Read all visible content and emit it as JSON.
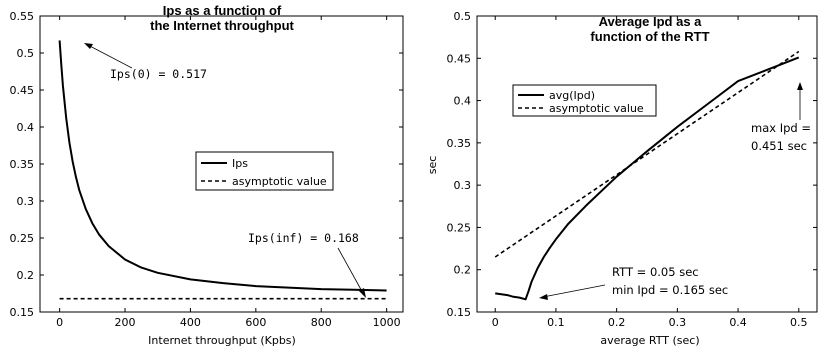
{
  "chart_data": [
    {
      "type": "line",
      "title": [
        "Ips as a function of",
        "the Internet throughput"
      ],
      "xlabel": "Internet throughput (Kpbs)",
      "ylabel": "",
      "xlim": [
        -60,
        1050
      ],
      "ylim": [
        0.15,
        0.55
      ],
      "xticks": [
        0,
        200,
        400,
        600,
        800,
        1000
      ],
      "xtick_labels": [
        "0",
        "200",
        "400",
        "600",
        "800",
        "1000"
      ],
      "yticks": [
        0.15,
        0.2,
        0.25,
        0.3,
        0.35,
        0.4,
        0.45,
        0.5,
        0.55
      ],
      "ytick_labels": [
        "0.15",
        "0.2",
        "0.25",
        "0.3",
        "0.35",
        "0.4",
        "0.45",
        "0.5",
        "0.55"
      ],
      "grid": false,
      "legend_position": "center-right",
      "series": [
        {
          "name": "Ips",
          "style": "solid",
          "x": [
            0,
            5,
            10,
            20,
            30,
            40,
            50,
            60,
            80,
            100,
            120,
            150,
            200,
            250,
            300,
            400,
            500,
            600,
            700,
            800,
            900,
            1000
          ],
          "y": [
            0.517,
            0.484,
            0.456,
            0.412,
            0.379,
            0.353,
            0.332,
            0.315,
            0.289,
            0.27,
            0.255,
            0.239,
            0.221,
            0.21,
            0.203,
            0.194,
            0.189,
            0.185,
            0.183,
            0.181,
            0.18,
            0.179
          ]
        },
        {
          "name": "asymptotic value",
          "style": "dashed",
          "x": [
            0,
            1000
          ],
          "y": [
            0.168,
            0.168
          ]
        }
      ],
      "annotations": [
        {
          "text": "Ips(0) = 0.517",
          "x": 0,
          "y": 0.517
        },
        {
          "text": "Ips(inf) = 0.168",
          "x": 1000,
          "y": 0.168
        }
      ]
    },
    {
      "type": "line",
      "title": [
        "Average Ipd as a",
        "function of the RTT"
      ],
      "xlabel": "average RTT (sec)",
      "ylabel": "sec",
      "xlim": [
        -0.03,
        0.53
      ],
      "ylim": [
        0.15,
        0.5
      ],
      "xticks": [
        0,
        0.1,
        0.2,
        0.3,
        0.4,
        0.5
      ],
      "xtick_labels": [
        "0",
        "0.1",
        "0.2",
        "0.3",
        "0.4",
        "0.5"
      ],
      "yticks": [
        0.15,
        0.2,
        0.25,
        0.3,
        0.35,
        0.4,
        0.45,
        0.5
      ],
      "ytick_labels": [
        "0.15",
        "0.2",
        "0.25",
        "0.3",
        "0.35",
        "0.4",
        "0.45",
        "0.5"
      ],
      "grid": false,
      "legend_position": "top-center",
      "series": [
        {
          "name": "avg(Ipd)",
          "style": "solid",
          "x": [
            0,
            0.01,
            0.02,
            0.03,
            0.04,
            0.05,
            0.055,
            0.06,
            0.07,
            0.08,
            0.09,
            0.1,
            0.12,
            0.15,
            0.2,
            0.25,
            0.3,
            0.35,
            0.4,
            0.45,
            0.5
          ],
          "y": [
            0.172,
            0.171,
            0.17,
            0.168,
            0.167,
            0.165,
            0.175,
            0.186,
            0.202,
            0.215,
            0.226,
            0.236,
            0.254,
            0.276,
            0.31,
            0.34,
            0.369,
            0.396,
            0.423,
            0.437,
            0.451
          ]
        },
        {
          "name": "asymptotic value",
          "style": "dashed",
          "x": [
            0,
            0.5
          ],
          "y": [
            0.215,
            0.458
          ]
        }
      ],
      "annotations": [
        {
          "text": [
            "max Ipd =",
            "0.451 sec"
          ],
          "x": 0.5,
          "y": 0.451
        },
        {
          "text": [
            "RTT = 0.05 sec",
            "min Ipd = 0.165 sec"
          ],
          "x": 0.05,
          "y": 0.165
        }
      ]
    }
  ]
}
